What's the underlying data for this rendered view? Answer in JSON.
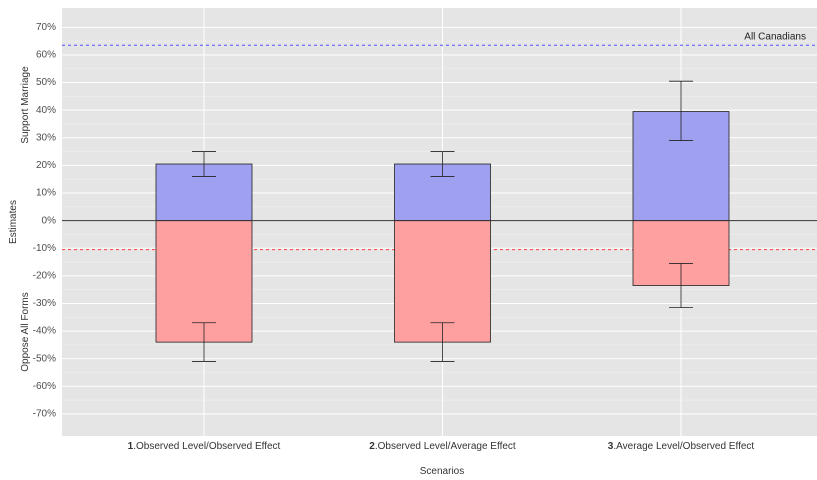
{
  "chart_data": {
    "type": "bar",
    "xlabel": "Scenarios",
    "ylabel": "Estimates",
    "ylabel_top": "Support Marriage",
    "ylabel_bottom": "Oppose All Forms",
    "ylim": [
      -78,
      77
    ],
    "y_ticks": [
      -70,
      -60,
      -50,
      -40,
      -30,
      -20,
      -10,
      0,
      10,
      20,
      30,
      40,
      50,
      60,
      70
    ],
    "y_tick_labels": [
      "-70%",
      "-60%",
      "-50%",
      "-40%",
      "-30%",
      "-20%",
      "-10%",
      "0%",
      "10%",
      "20%",
      "30%",
      "40%",
      "50%",
      "60%",
      "70%"
    ],
    "categories": [
      {
        "number": "1",
        "rest": ".Observed Level/Observed Effect"
      },
      {
        "number": "2",
        "rest": ".Observed Level/Average Effect"
      },
      {
        "number": "3",
        "rest": ".Average Level/Observed Effect"
      }
    ],
    "series": [
      {
        "key": "support",
        "color": "#a0a0f0",
        "values": [
          20.5,
          20.5,
          39.5
        ],
        "error_low": [
          16,
          16,
          29
        ],
        "error_high": [
          25,
          25,
          50.5
        ]
      },
      {
        "key": "oppose",
        "color": "#ffa0a0",
        "values": [
          -44,
          -44,
          -23.5
        ],
        "error_low": [
          -51,
          -51,
          -31.5
        ],
        "error_high": [
          -37,
          -37,
          -15.5
        ]
      }
    ],
    "reference_lines": [
      {
        "value": 63.5,
        "color": "#5050ff",
        "style": "dashed",
        "label": "All Canadians"
      },
      {
        "value": -10.5,
        "color": "#ff4040",
        "style": "dashed",
        "label": ""
      }
    ],
    "zero_line": 0,
    "grid": true,
    "legend": "none",
    "colors": {
      "panel": "#e5e5e5",
      "grid_major": "#ffffff",
      "grid_minor": "#f0f0f0",
      "bar_outline": "#222222"
    }
  }
}
